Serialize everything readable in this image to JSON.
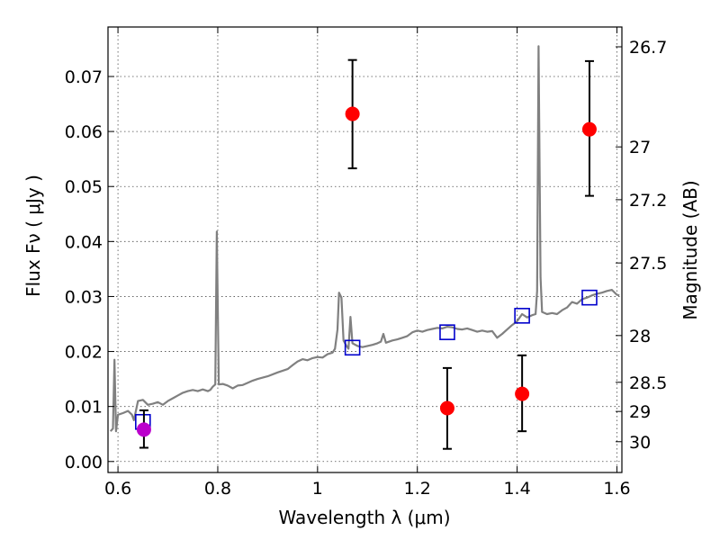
{
  "chart_data": {
    "type": "scatter",
    "title": "",
    "xlabel": "Wavelength  λ (μm)",
    "ylabel": "Flux  Fν ( μJy )",
    "ylabel_right": "Magnitude (AB)",
    "xlim": [
      0.58,
      1.61
    ],
    "ylim": [
      -0.002,
      0.079
    ],
    "grid": true,
    "x_ticks": [
      0.6,
      0.8,
      1.0,
      1.2,
      1.4,
      1.6
    ],
    "x_tick_labels": [
      "0.6",
      "0.8",
      "1",
      "1.2",
      "1.4",
      "1.6"
    ],
    "y_ticks": [
      0.0,
      0.01,
      0.02,
      0.03,
      0.04,
      0.05,
      0.06,
      0.07
    ],
    "y_tick_labels": [
      "0.00",
      "0.01",
      "0.02",
      "0.03",
      "0.04",
      "0.05",
      "0.06",
      "0.07"
    ],
    "right_ticks": [
      {
        "label": "26.7",
        "flux": 0.0754
      },
      {
        "label": "27",
        "flux": 0.0572
      },
      {
        "label": "27.2",
        "flux": 0.0476
      },
      {
        "label": "27.5",
        "flux": 0.0361
      },
      {
        "label": "28",
        "flux": 0.0229
      },
      {
        "label": "28.5",
        "flux": 0.0144
      },
      {
        "label": "29",
        "flux": 0.0091
      },
      {
        "label": "30",
        "flux": 0.0036
      }
    ],
    "series": [
      {
        "type": "line",
        "color": "#808080",
        "points": [
          [
            0.585,
            0.0055
          ],
          [
            0.59,
            0.006
          ],
          [
            0.593,
            0.0185
          ],
          [
            0.596,
            0.0055
          ],
          [
            0.6,
            0.0085
          ],
          [
            0.61,
            0.0088
          ],
          [
            0.62,
            0.0092
          ],
          [
            0.628,
            0.0085
          ],
          [
            0.632,
            0.0075
          ],
          [
            0.64,
            0.011
          ],
          [
            0.65,
            0.0112
          ],
          [
            0.66,
            0.0103
          ],
          [
            0.67,
            0.0105
          ],
          [
            0.68,
            0.0108
          ],
          [
            0.69,
            0.0103
          ],
          [
            0.7,
            0.011
          ],
          [
            0.71,
            0.0115
          ],
          [
            0.72,
            0.012
          ],
          [
            0.73,
            0.0125
          ],
          [
            0.74,
            0.0128
          ],
          [
            0.75,
            0.013
          ],
          [
            0.76,
            0.0128
          ],
          [
            0.77,
            0.0131
          ],
          [
            0.78,
            0.0128
          ],
          [
            0.785,
            0.013
          ],
          [
            0.79,
            0.0136
          ],
          [
            0.795,
            0.014
          ],
          [
            0.798,
            0.0418
          ],
          [
            0.802,
            0.014
          ],
          [
            0.81,
            0.0141
          ],
          [
            0.82,
            0.0138
          ],
          [
            0.83,
            0.0133
          ],
          [
            0.84,
            0.0138
          ],
          [
            0.85,
            0.0139
          ],
          [
            0.86,
            0.0143
          ],
          [
            0.87,
            0.0147
          ],
          [
            0.88,
            0.015
          ],
          [
            0.9,
            0.0155
          ],
          [
            0.92,
            0.0162
          ],
          [
            0.94,
            0.0168
          ],
          [
            0.95,
            0.0175
          ],
          [
            0.96,
            0.0182
          ],
          [
            0.97,
            0.0186
          ],
          [
            0.98,
            0.0184
          ],
          [
            0.99,
            0.0188
          ],
          [
            1.0,
            0.019
          ],
          [
            1.01,
            0.0189
          ],
          [
            1.02,
            0.0195
          ],
          [
            1.03,
            0.0198
          ],
          [
            1.035,
            0.0205
          ],
          [
            1.04,
            0.024
          ],
          [
            1.043,
            0.0307
          ],
          [
            1.048,
            0.0298
          ],
          [
            1.052,
            0.022
          ],
          [
            1.058,
            0.021
          ],
          [
            1.062,
            0.0205
          ],
          [
            1.066,
            0.0263
          ],
          [
            1.07,
            0.0215
          ],
          [
            1.08,
            0.021
          ],
          [
            1.09,
            0.0208
          ],
          [
            1.1,
            0.021
          ],
          [
            1.11,
            0.0212
          ],
          [
            1.12,
            0.0215
          ],
          [
            1.127,
            0.0218
          ],
          [
            1.132,
            0.0232
          ],
          [
            1.137,
            0.0216
          ],
          [
            1.15,
            0.022
          ],
          [
            1.16,
            0.0222
          ],
          [
            1.17,
            0.0225
          ],
          [
            1.18,
            0.0228
          ],
          [
            1.19,
            0.0235
          ],
          [
            1.2,
            0.0238
          ],
          [
            1.21,
            0.0236
          ],
          [
            1.22,
            0.0239
          ],
          [
            1.23,
            0.0241
          ],
          [
            1.24,
            0.0243
          ],
          [
            1.25,
            0.0242
          ],
          [
            1.26,
            0.0245
          ],
          [
            1.27,
            0.0244
          ],
          [
            1.28,
            0.0241
          ],
          [
            1.29,
            0.024
          ],
          [
            1.3,
            0.0242
          ],
          [
            1.31,
            0.0239
          ],
          [
            1.32,
            0.0236
          ],
          [
            1.33,
            0.0238
          ],
          [
            1.34,
            0.0236
          ],
          [
            1.35,
            0.0237
          ],
          [
            1.36,
            0.0225
          ],
          [
            1.37,
            0.0232
          ],
          [
            1.38,
            0.024
          ],
          [
            1.39,
            0.0248
          ],
          [
            1.4,
            0.0255
          ],
          [
            1.41,
            0.0268
          ],
          [
            1.42,
            0.0262
          ],
          [
            1.43,
            0.0266
          ],
          [
            1.437,
            0.0268
          ],
          [
            1.44,
            0.031
          ],
          [
            1.443,
            0.0755
          ],
          [
            1.447,
            0.0335
          ],
          [
            1.45,
            0.0272
          ],
          [
            1.46,
            0.0268
          ],
          [
            1.47,
            0.027
          ],
          [
            1.48,
            0.0268
          ],
          [
            1.49,
            0.0275
          ],
          [
            1.5,
            0.028
          ],
          [
            1.51,
            0.029
          ],
          [
            1.52,
            0.0287
          ],
          [
            1.53,
            0.0295
          ],
          [
            1.54,
            0.0298
          ],
          [
            1.55,
            0.0302
          ],
          [
            1.56,
            0.0305
          ],
          [
            1.57,
            0.0307
          ],
          [
            1.58,
            0.031
          ],
          [
            1.59,
            0.0312
          ],
          [
            1.6,
            0.0303
          ],
          [
            1.605,
            0.0302
          ]
        ]
      },
      {
        "type": "scatter",
        "marker": "open-square",
        "color": "#0000cc",
        "points": [
          [
            0.65,
            0.0072
          ],
          [
            1.07,
            0.0207
          ],
          [
            1.26,
            0.0235
          ],
          [
            1.41,
            0.0265
          ],
          [
            1.545,
            0.0298
          ]
        ]
      },
      {
        "type": "scatter",
        "marker": "filled-circle",
        "color": "#ff0000",
        "points": [
          {
            "x": 1.07,
            "y": 0.0632,
            "lo": 0.0533,
            "hi": 0.073
          },
          {
            "x": 1.26,
            "y": 0.0097,
            "lo": 0.0023,
            "hi": 0.017
          },
          {
            "x": 1.41,
            "y": 0.0123,
            "lo": 0.0055,
            "hi": 0.0193
          },
          {
            "x": 1.545,
            "y": 0.0604,
            "lo": 0.0483,
            "hi": 0.0728
          }
        ]
      },
      {
        "type": "scatter",
        "marker": "filled-circle",
        "color": "#bb00cc",
        "points": [
          {
            "x": 0.652,
            "y": 0.0058,
            "lo": 0.0025,
            "hi": 0.0093
          }
        ]
      }
    ]
  }
}
